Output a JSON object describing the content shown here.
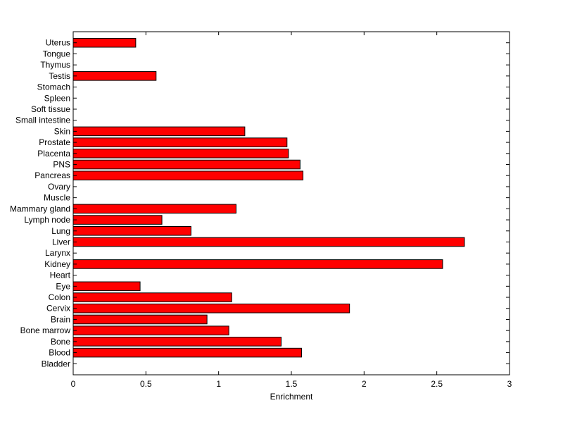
{
  "chart_data": {
    "type": "bar",
    "orientation": "horizontal",
    "title": "",
    "xlabel": "Enrichment",
    "ylabel": "",
    "xlim": [
      0,
      3
    ],
    "xticks": [
      0,
      0.5,
      1,
      1.5,
      2,
      2.5,
      3
    ],
    "xtick_labels": [
      "0",
      "0.5",
      "1",
      "1.5",
      "2",
      "2.5",
      "3"
    ],
    "grid": false,
    "legend": "none",
    "bar_color": "#ff0000",
    "edge_color": "#000000",
    "categories": [
      "Bladder",
      "Blood",
      "Bone",
      "Bone marrow",
      "Brain",
      "Cervix",
      "Colon",
      "Eye",
      "Heart",
      "Kidney",
      "Larynx",
      "Liver",
      "Lung",
      "Lymph node",
      "Mammary gland",
      "Muscle",
      "Ovary",
      "Pancreas",
      "PNS",
      "Placenta",
      "Prostate",
      "Skin",
      "Small intestine",
      "Soft tissue",
      "Spleen",
      "Stomach",
      "Testis",
      "Thymus",
      "Tongue",
      "Uterus"
    ],
    "values": [
      0,
      1.57,
      1.43,
      1.07,
      0.92,
      1.9,
      1.09,
      0.46,
      0,
      2.54,
      0,
      2.69,
      0.81,
      0.61,
      1.12,
      0,
      0,
      1.58,
      1.56,
      1.48,
      1.47,
      1.18,
      0,
      0,
      0,
      0,
      0.57,
      0,
      0,
      0.43
    ]
  }
}
